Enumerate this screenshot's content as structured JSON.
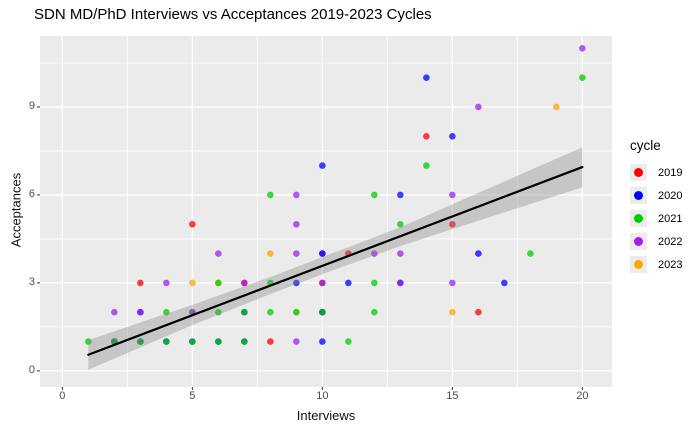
{
  "chart_data": {
    "type": "scatter",
    "title": "SDN MD/PhD Interviews vs Acceptances 2019-2023 Cycles",
    "xlabel": "Interviews",
    "ylabel": "Acceptances",
    "xlim": [
      -0.86,
      21.14
    ],
    "ylim": [
      -0.55,
      11.42
    ],
    "x_ticks": [
      0,
      5,
      10,
      15,
      20
    ],
    "y_ticks": [
      0,
      3,
      6,
      9
    ],
    "x_minor_ticks": [
      2.5,
      7.5,
      12.5,
      17.5
    ],
    "y_minor_ticks": [
      1.5,
      4.5,
      7.5,
      10.5
    ],
    "panel_background": "#EBEBEB",
    "grid_color": "#FFFFFF",
    "tick_mark_color": "#333333",
    "tick_label_color": "#4D4D4D",
    "point_alpha": 0.75,
    "point_radius": 3.3,
    "legend": {
      "title": "cycle",
      "position": "right",
      "entries": [
        {
          "label": "2019",
          "color": "#FF0000"
        },
        {
          "label": "2020",
          "color": "#0000FF"
        },
        {
          "label": "2021",
          "color": "#00CD00"
        },
        {
          "label": "2022",
          "color": "#A020F0"
        },
        {
          "label": "2023",
          "color": "#FFA500"
        }
      ]
    },
    "points": [
      {
        "x": 20,
        "y": 11,
        "cycles": [
          "2022"
        ]
      },
      {
        "x": 14,
        "y": 10,
        "cycles": [
          "2020"
        ]
      },
      {
        "x": 20,
        "y": 10,
        "cycles": [
          "2021"
        ]
      },
      {
        "x": 16,
        "y": 9,
        "cycles": [
          "2022"
        ]
      },
      {
        "x": 19,
        "y": 9,
        "cycles": [
          "2023"
        ]
      },
      {
        "x": 14,
        "y": 8,
        "cycles": [
          "2019"
        ]
      },
      {
        "x": 15,
        "y": 8,
        "cycles": [
          "2020"
        ]
      },
      {
        "x": 10,
        "y": 7,
        "cycles": [
          "2020"
        ]
      },
      {
        "x": 14,
        "y": 7,
        "cycles": [
          "2021"
        ]
      },
      {
        "x": 8,
        "y": 6,
        "cycles": [
          "2021"
        ]
      },
      {
        "x": 9,
        "y": 6,
        "cycles": [
          "2022"
        ]
      },
      {
        "x": 12,
        "y": 6,
        "cycles": [
          "2021"
        ]
      },
      {
        "x": 13,
        "y": 6,
        "cycles": [
          "2020"
        ]
      },
      {
        "x": 15,
        "y": 6,
        "cycles": [
          "2022"
        ]
      },
      {
        "x": 5,
        "y": 5,
        "cycles": [
          "2019"
        ]
      },
      {
        "x": 9,
        "y": 5,
        "cycles": [
          "2022"
        ]
      },
      {
        "x": 13,
        "y": 5,
        "cycles": [
          "2021"
        ]
      },
      {
        "x": 15,
        "y": 5,
        "cycles": [
          "2019"
        ]
      },
      {
        "x": 6,
        "y": 4,
        "cycles": [
          "2022"
        ]
      },
      {
        "x": 8,
        "y": 4,
        "cycles": [
          "2023"
        ]
      },
      {
        "x": 9,
        "y": 4,
        "cycles": [
          "2022"
        ]
      },
      {
        "x": 10,
        "y": 4,
        "cycles": [
          "2022",
          "2020"
        ]
      },
      {
        "x": 11,
        "y": 4,
        "cycles": [
          "2019"
        ]
      },
      {
        "x": 12,
        "y": 4,
        "cycles": [
          "2022"
        ]
      },
      {
        "x": 13,
        "y": 4,
        "cycles": [
          "2022"
        ]
      },
      {
        "x": 16,
        "y": 4,
        "cycles": [
          "2020"
        ]
      },
      {
        "x": 18,
        "y": 4,
        "cycles": [
          "2021"
        ]
      },
      {
        "x": 3,
        "y": 3,
        "cycles": [
          "2019"
        ]
      },
      {
        "x": 4,
        "y": 3,
        "cycles": [
          "2022"
        ]
      },
      {
        "x": 5,
        "y": 3,
        "cycles": [
          "2023"
        ]
      },
      {
        "x": 6,
        "y": 3,
        "cycles": [
          "2023",
          "2021"
        ]
      },
      {
        "x": 7,
        "y": 3,
        "cycles": [
          "2019",
          "2022"
        ]
      },
      {
        "x": 8,
        "y": 3,
        "cycles": [
          "2021"
        ]
      },
      {
        "x": 9,
        "y": 3,
        "cycles": [
          "2020"
        ]
      },
      {
        "x": 10,
        "y": 3,
        "cycles": [
          "2019",
          "2022"
        ]
      },
      {
        "x": 11,
        "y": 3,
        "cycles": [
          "2020"
        ]
      },
      {
        "x": 12,
        "y": 3,
        "cycles": [
          "2021"
        ]
      },
      {
        "x": 13,
        "y": 3,
        "cycles": [
          "2020",
          "2022"
        ]
      },
      {
        "x": 15,
        "y": 3,
        "cycles": [
          "2022"
        ]
      },
      {
        "x": 17,
        "y": 3,
        "cycles": [
          "2020"
        ]
      },
      {
        "x": 2,
        "y": 2,
        "cycles": [
          "2022"
        ]
      },
      {
        "x": 3,
        "y": 2,
        "cycles": [
          "2020",
          "2022"
        ]
      },
      {
        "x": 4,
        "y": 2,
        "cycles": [
          "2021"
        ]
      },
      {
        "x": 5,
        "y": 2,
        "cycles": [
          "2021",
          "2022"
        ]
      },
      {
        "x": 6,
        "y": 2,
        "cycles": [
          "2021"
        ]
      },
      {
        "x": 7,
        "y": 2,
        "cycles": [
          "2020",
          "2021"
        ]
      },
      {
        "x": 8,
        "y": 2,
        "cycles": [
          "2021"
        ]
      },
      {
        "x": 9,
        "y": 2,
        "cycles": [
          "2023",
          "2021"
        ]
      },
      {
        "x": 10,
        "y": 2,
        "cycles": [
          "2022",
          "2020",
          "2021"
        ]
      },
      {
        "x": 12,
        "y": 2,
        "cycles": [
          "2021"
        ]
      },
      {
        "x": 15,
        "y": 2,
        "cycles": [
          "2023"
        ]
      },
      {
        "x": 16,
        "y": 2,
        "cycles": [
          "2019"
        ]
      },
      {
        "x": 1,
        "y": 1,
        "cycles": [
          "2021"
        ]
      },
      {
        "x": 2,
        "y": 1,
        "cycles": [
          "2022",
          "2020",
          "2021"
        ]
      },
      {
        "x": 3,
        "y": 1,
        "cycles": [
          "2020",
          "2021"
        ]
      },
      {
        "x": 4,
        "y": 1,
        "cycles": [
          "2020",
          "2021"
        ]
      },
      {
        "x": 5,
        "y": 1,
        "cycles": [
          "2020",
          "2021"
        ]
      },
      {
        "x": 6,
        "y": 1,
        "cycles": [
          "2020",
          "2021"
        ]
      },
      {
        "x": 7,
        "y": 1,
        "cycles": [
          "2020",
          "2021"
        ]
      },
      {
        "x": 8,
        "y": 1,
        "cycles": [
          "2019"
        ]
      },
      {
        "x": 9,
        "y": 1,
        "cycles": [
          "2022"
        ]
      },
      {
        "x": 10,
        "y": 1,
        "cycles": [
          "2020"
        ]
      },
      {
        "x": 11,
        "y": 1,
        "cycles": [
          "2021"
        ]
      }
    ],
    "trend_line": {
      "x1": 1,
      "y1": 0.55,
      "x2": 20,
      "y2": 6.95,
      "color": "#000000",
      "width": 2.2
    },
    "confidence_band": {
      "x": [
        1,
        5,
        8,
        10.5,
        13,
        16,
        20
      ],
      "upper": [
        1.05,
        2.25,
        3.2,
        4.05,
        4.9,
        6.07,
        7.62
      ],
      "lower": [
        0.04,
        1.56,
        2.62,
        3.46,
        4.26,
        5.12,
        6.26
      ],
      "color": "#808080",
      "opacity": 0.35
    }
  }
}
